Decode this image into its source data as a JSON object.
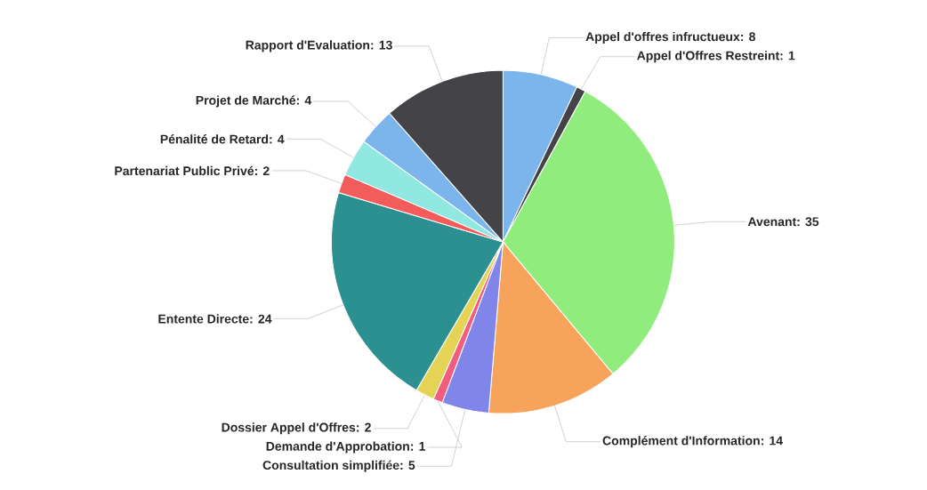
{
  "chart_data": {
    "type": "pie",
    "value_labels": [
      ": 8",
      ": 1",
      ": 35",
      ": 14",
      ": 5",
      ": 1",
      ": 2",
      ": 24",
      ": 2",
      ": 4",
      ": 4",
      ": 13"
    ],
    "categories": [
      "Appel d'offres infructueux",
      "Appel d'Offres Restreint",
      "Avenant",
      "Complément d'Information",
      "Consultation simplifiée",
      "Demande d'Approbation",
      "Dossier Appel d'Offres",
      "Entente Directe",
      "Partenariat Public Privé",
      "Pénalité de Retard",
      "Projet de Marché",
      "Rapport d'Evaluation"
    ],
    "values": [
      8,
      1,
      35,
      14,
      5,
      1,
      2,
      24,
      2,
      4,
      4,
      13
    ],
    "colors": [
      "#7cb5ec",
      "#434348",
      "#90ed7d",
      "#f7a35c",
      "#8085e9",
      "#f15c80",
      "#e4d354",
      "#2b908f",
      "#f45b5b",
      "#91e8e1",
      "#7cb5ec",
      "#434348"
    ]
  }
}
